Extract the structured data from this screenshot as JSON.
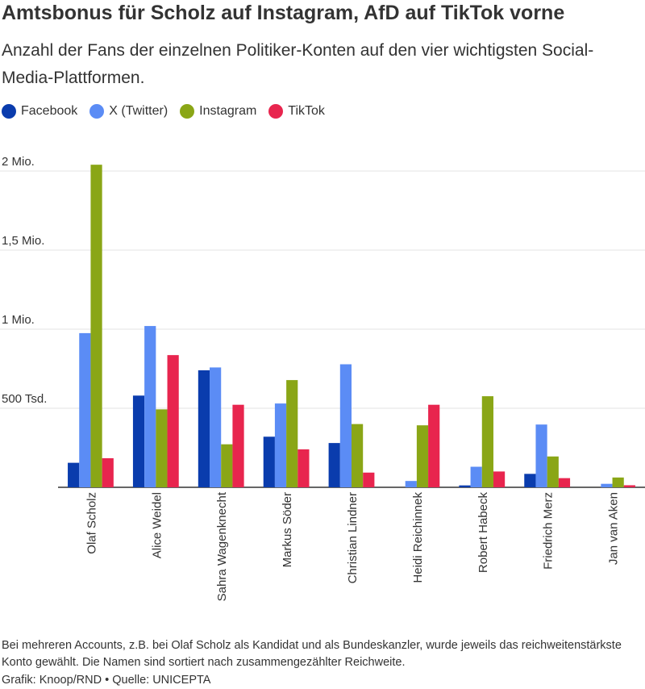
{
  "header": {
    "title": "Amtsbonus für Scholz auf Instagram, AfD auf TikTok vorne",
    "subtitle": "Anzahl der Fans der einzelnen Politiker-Konten auf den vier wichtigsten Social-Media-Plattformen."
  },
  "chart_data": {
    "type": "bar",
    "categories": [
      "Olaf Scholz",
      "Alice Weidel",
      "Sahra Wagenknecht",
      "Markus Söder",
      "Christian Lindner",
      "Heidi Reichinnek",
      "Robert Habeck",
      "Friedrich Merz",
      "Jan van Aken"
    ],
    "series": [
      {
        "name": "Facebook",
        "color": "#0a3cad",
        "values": [
          155000,
          580000,
          740000,
          320000,
          280000,
          0,
          12000,
          85000,
          0
        ]
      },
      {
        "name": "X (Twitter)",
        "color": "#5b8cf5",
        "values": [
          975000,
          1020000,
          758000,
          530000,
          778000,
          40000,
          130000,
          397000,
          22000
        ]
      },
      {
        "name": "Instagram",
        "color": "#8aa616",
        "values": [
          2040000,
          493000,
          272000,
          678000,
          400000,
          392000,
          576000,
          195000,
          62000
        ]
      },
      {
        "name": "TikTok",
        "color": "#e8254e",
        "values": [
          184000,
          836000,
          522000,
          240000,
          93000,
          522000,
          100000,
          58000,
          13000
        ]
      }
    ],
    "y_ticks": [
      {
        "value": 500000,
        "label": "500 Tsd."
      },
      {
        "value": 1000000,
        "label": "1 Mio."
      },
      {
        "value": 1500000,
        "label": "1,5 Mio."
      },
      {
        "value": 2000000,
        "label": "2 Mio."
      }
    ],
    "ylim": [
      0,
      2000000
    ],
    "grid": true,
    "legend_position": "top-left"
  },
  "footer": {
    "note": "Bei mehreren Accounts, z.B. bei Olaf Scholz als Kandidat und als Bundeskanzler, wurde jeweils das reichweitenstärkste Konto gewählt. Die Namen sind sortiert nach zusammengezählter Reichweite.",
    "credit": "Grafik: Knoop/RND • Quelle: UNICEPTA"
  }
}
